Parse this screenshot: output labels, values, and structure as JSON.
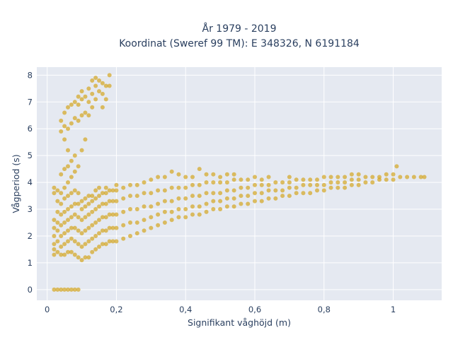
{
  "chart_data": {
    "type": "scatter",
    "title_lines": [
      "År 1979 - 2019",
      "Koordinat (Sweref 99 TM): E 348326, N 6191184"
    ],
    "xlabel": "Signifikant våghöjd (m)",
    "ylabel": "Vågperiod (s)",
    "xlim": [
      -0.03,
      1.14
    ],
    "ylim": [
      -0.4,
      8.3
    ],
    "x_ticks": [
      0,
      0.2,
      0.4,
      0.6,
      0.8,
      1
    ],
    "x_tick_labels": [
      "0",
      "0,2",
      "0,4",
      "0,6",
      "0,8",
      "1"
    ],
    "y_ticks": [
      0,
      1,
      2,
      3,
      4,
      5,
      6,
      7,
      8
    ],
    "y_tick_labels": [
      "0",
      "1",
      "2",
      "3",
      "4",
      "5",
      "6",
      "7",
      "8"
    ],
    "grid": true,
    "legend": "none",
    "marker_color": "#d4a521",
    "marker_opacity": 0.7,
    "plot_bgcolor": "#e5e9f1",
    "points": [
      [
        0.02,
        0
      ],
      [
        0.03,
        0
      ],
      [
        0.04,
        0
      ],
      [
        0.05,
        0
      ],
      [
        0.06,
        0
      ],
      [
        0.07,
        0
      ],
      [
        0.08,
        0
      ],
      [
        0.09,
        0
      ],
      [
        0.02,
        1.3
      ],
      [
        0.02,
        1.5
      ],
      [
        0.02,
        1.7
      ],
      [
        0.02,
        2.0
      ],
      [
        0.02,
        2.3
      ],
      [
        0.02,
        2.6
      ],
      [
        0.02,
        3.6
      ],
      [
        0.02,
        3.8
      ],
      [
        0.03,
        1.4
      ],
      [
        0.03,
        1.8
      ],
      [
        0.03,
        2.2
      ],
      [
        0.03,
        2.5
      ],
      [
        0.03,
        2.9
      ],
      [
        0.03,
        3.3
      ],
      [
        0.03,
        3.7
      ],
      [
        0.04,
        1.3
      ],
      [
        0.04,
        1.6
      ],
      [
        0.04,
        2.0
      ],
      [
        0.04,
        2.4
      ],
      [
        0.04,
        2.8
      ],
      [
        0.04,
        3.2
      ],
      [
        0.04,
        3.6
      ],
      [
        0.04,
        4.3
      ],
      [
        0.04,
        5.9
      ],
      [
        0.04,
        6.3
      ],
      [
        0.05,
        1.3
      ],
      [
        0.05,
        1.7
      ],
      [
        0.05,
        2.1
      ],
      [
        0.05,
        2.5
      ],
      [
        0.05,
        2.9
      ],
      [
        0.05,
        3.4
      ],
      [
        0.05,
        3.8
      ],
      [
        0.05,
        4.5
      ],
      [
        0.05,
        5.6
      ],
      [
        0.05,
        6.1
      ],
      [
        0.05,
        6.6
      ],
      [
        0.06,
        1.4
      ],
      [
        0.06,
        1.8
      ],
      [
        0.06,
        2.2
      ],
      [
        0.06,
        2.6
      ],
      [
        0.06,
        3.0
      ],
      [
        0.06,
        3.5
      ],
      [
        0.06,
        4.0
      ],
      [
        0.06,
        4.6
      ],
      [
        0.06,
        5.2
      ],
      [
        0.06,
        6.0
      ],
      [
        0.06,
        6.8
      ],
      [
        0.07,
        1.4
      ],
      [
        0.07,
        1.9
      ],
      [
        0.07,
        2.3
      ],
      [
        0.07,
        2.7
      ],
      [
        0.07,
        3.1
      ],
      [
        0.07,
        3.6
      ],
      [
        0.07,
        4.2
      ],
      [
        0.07,
        4.8
      ],
      [
        0.07,
        6.2
      ],
      [
        0.07,
        6.9
      ],
      [
        0.08,
        1.3
      ],
      [
        0.08,
        1.8
      ],
      [
        0.08,
        2.3
      ],
      [
        0.08,
        2.8
      ],
      [
        0.08,
        3.2
      ],
      [
        0.08,
        3.7
      ],
      [
        0.08,
        4.4
      ],
      [
        0.08,
        5.0
      ],
      [
        0.08,
        6.4
      ],
      [
        0.08,
        7.0
      ],
      [
        0.09,
        1.2
      ],
      [
        0.09,
        1.7
      ],
      [
        0.09,
        2.2
      ],
      [
        0.09,
        2.7
      ],
      [
        0.09,
        3.2
      ],
      [
        0.09,
        3.6
      ],
      [
        0.09,
        4.6
      ],
      [
        0.09,
        6.3
      ],
      [
        0.09,
        6.9
      ],
      [
        0.09,
        7.2
      ],
      [
        0.1,
        1.1
      ],
      [
        0.1,
        1.6
      ],
      [
        0.1,
        2.1
      ],
      [
        0.1,
        2.6
      ],
      [
        0.1,
        3.0
      ],
      [
        0.1,
        3.3
      ],
      [
        0.1,
        5.2
      ],
      [
        0.1,
        6.5
      ],
      [
        0.1,
        7.1
      ],
      [
        0.1,
        7.4
      ],
      [
        0.11,
        1.2
      ],
      [
        0.11,
        1.7
      ],
      [
        0.11,
        2.2
      ],
      [
        0.11,
        2.7
      ],
      [
        0.11,
        3.1
      ],
      [
        0.11,
        3.4
      ],
      [
        0.11,
        5.6
      ],
      [
        0.11,
        6.6
      ],
      [
        0.11,
        7.2
      ],
      [
        0.12,
        1.2
      ],
      [
        0.12,
        1.8
      ],
      [
        0.12,
        2.3
      ],
      [
        0.12,
        2.8
      ],
      [
        0.12,
        3.2
      ],
      [
        0.12,
        3.5
      ],
      [
        0.12,
        6.5
      ],
      [
        0.12,
        7.0
      ],
      [
        0.12,
        7.5
      ],
      [
        0.13,
        1.4
      ],
      [
        0.13,
        1.9
      ],
      [
        0.13,
        2.4
      ],
      [
        0.13,
        2.9
      ],
      [
        0.13,
        3.3
      ],
      [
        0.13,
        3.5
      ],
      [
        0.13,
        6.8
      ],
      [
        0.13,
        7.3
      ],
      [
        0.13,
        7.8
      ],
      [
        0.14,
        1.5
      ],
      [
        0.14,
        2.0
      ],
      [
        0.14,
        2.5
      ],
      [
        0.14,
        3.0
      ],
      [
        0.14,
        3.4
      ],
      [
        0.14,
        3.7
      ],
      [
        0.14,
        7.1
      ],
      [
        0.14,
        7.6
      ],
      [
        0.14,
        7.9
      ],
      [
        0.15,
        1.6
      ],
      [
        0.15,
        2.1
      ],
      [
        0.15,
        2.6
      ],
      [
        0.15,
        3.1
      ],
      [
        0.15,
        3.5
      ],
      [
        0.15,
        3.8
      ],
      [
        0.15,
        7.4
      ],
      [
        0.15,
        7.8
      ],
      [
        0.16,
        1.7
      ],
      [
        0.16,
        2.2
      ],
      [
        0.16,
        2.7
      ],
      [
        0.16,
        3.2
      ],
      [
        0.16,
        3.6
      ],
      [
        0.16,
        6.8
      ],
      [
        0.16,
        7.3
      ],
      [
        0.16,
        7.7
      ],
      [
        0.17,
        1.7
      ],
      [
        0.17,
        2.2
      ],
      [
        0.17,
        2.7
      ],
      [
        0.17,
        3.2
      ],
      [
        0.17,
        3.6
      ],
      [
        0.17,
        3.8
      ],
      [
        0.17,
        7.1
      ],
      [
        0.17,
        7.6
      ],
      [
        0.18,
        1.8
      ],
      [
        0.18,
        2.3
      ],
      [
        0.18,
        2.8
      ],
      [
        0.18,
        3.3
      ],
      [
        0.18,
        3.7
      ],
      [
        0.18,
        7.6
      ],
      [
        0.18,
        8.0
      ],
      [
        0.19,
        1.8
      ],
      [
        0.19,
        2.3
      ],
      [
        0.19,
        2.8
      ],
      [
        0.19,
        3.3
      ],
      [
        0.19,
        3.7
      ],
      [
        0.2,
        1.8
      ],
      [
        0.2,
        2.3
      ],
      [
        0.2,
        2.8
      ],
      [
        0.2,
        3.3
      ],
      [
        0.2,
        3.7
      ],
      [
        0.2,
        3.9
      ],
      [
        0.22,
        1.9
      ],
      [
        0.22,
        2.4
      ],
      [
        0.22,
        2.9
      ],
      [
        0.22,
        3.4
      ],
      [
        0.22,
        3.8
      ],
      [
        0.24,
        2.0
      ],
      [
        0.24,
        2.5
      ],
      [
        0.24,
        3.0
      ],
      [
        0.24,
        3.5
      ],
      [
        0.24,
        3.9
      ],
      [
        0.26,
        2.1
      ],
      [
        0.26,
        2.5
      ],
      [
        0.26,
        3.0
      ],
      [
        0.26,
        3.5
      ],
      [
        0.26,
        3.9
      ],
      [
        0.28,
        2.2
      ],
      [
        0.28,
        2.6
      ],
      [
        0.28,
        3.1
      ],
      [
        0.28,
        3.6
      ],
      [
        0.28,
        4.0
      ],
      [
        0.3,
        2.3
      ],
      [
        0.3,
        2.7
      ],
      [
        0.3,
        3.1
      ],
      [
        0.3,
        3.6
      ],
      [
        0.3,
        4.1
      ],
      [
        0.32,
        2.4
      ],
      [
        0.32,
        2.8
      ],
      [
        0.32,
        3.2
      ],
      [
        0.32,
        3.7
      ],
      [
        0.32,
        4.2
      ],
      [
        0.34,
        2.5
      ],
      [
        0.34,
        2.9
      ],
      [
        0.34,
        3.3
      ],
      [
        0.34,
        3.7
      ],
      [
        0.34,
        4.2
      ],
      [
        0.36,
        2.6
      ],
      [
        0.36,
        2.9
      ],
      [
        0.36,
        3.3
      ],
      [
        0.36,
        3.8
      ],
      [
        0.36,
        4.4
      ],
      [
        0.38,
        2.7
      ],
      [
        0.38,
        3.0
      ],
      [
        0.38,
        3.4
      ],
      [
        0.38,
        3.8
      ],
      [
        0.38,
        4.3
      ],
      [
        0.4,
        2.7
      ],
      [
        0.4,
        3.0
      ],
      [
        0.4,
        3.4
      ],
      [
        0.4,
        3.8
      ],
      [
        0.4,
        4.2
      ],
      [
        0.42,
        2.8
      ],
      [
        0.42,
        3.1
      ],
      [
        0.42,
        3.5
      ],
      [
        0.42,
        3.9
      ],
      [
        0.42,
        4.2
      ],
      [
        0.44,
        2.8
      ],
      [
        0.44,
        3.1
      ],
      [
        0.44,
        3.5
      ],
      [
        0.44,
        3.9
      ],
      [
        0.44,
        4.5
      ],
      [
        0.46,
        2.9
      ],
      [
        0.46,
        3.2
      ],
      [
        0.46,
        3.6
      ],
      [
        0.46,
        4.0
      ],
      [
        0.46,
        4.3
      ],
      [
        0.48,
        3.0
      ],
      [
        0.48,
        3.3
      ],
      [
        0.48,
        3.6
      ],
      [
        0.48,
        4.0
      ],
      [
        0.48,
        4.3
      ],
      [
        0.5,
        3.0
      ],
      [
        0.5,
        3.3
      ],
      [
        0.5,
        3.6
      ],
      [
        0.5,
        4.0
      ],
      [
        0.5,
        4.2
      ],
      [
        0.52,
        3.1
      ],
      [
        0.52,
        3.4
      ],
      [
        0.52,
        3.7
      ],
      [
        0.52,
        4.0
      ],
      [
        0.52,
        4.3
      ],
      [
        0.54,
        3.1
      ],
      [
        0.54,
        3.4
      ],
      [
        0.54,
        3.7
      ],
      [
        0.54,
        4.1
      ],
      [
        0.54,
        4.3
      ],
      [
        0.56,
        3.2
      ],
      [
        0.56,
        3.5
      ],
      [
        0.56,
        3.8
      ],
      [
        0.56,
        4.1
      ],
      [
        0.58,
        3.2
      ],
      [
        0.58,
        3.5
      ],
      [
        0.58,
        3.8
      ],
      [
        0.58,
        4.1
      ],
      [
        0.6,
        3.3
      ],
      [
        0.6,
        3.6
      ],
      [
        0.6,
        3.9
      ],
      [
        0.6,
        4.2
      ],
      [
        0.62,
        3.3
      ],
      [
        0.62,
        3.6
      ],
      [
        0.62,
        3.9
      ],
      [
        0.62,
        4.1
      ],
      [
        0.64,
        3.4
      ],
      [
        0.64,
        3.7
      ],
      [
        0.64,
        3.9
      ],
      [
        0.64,
        4.2
      ],
      [
        0.66,
        3.4
      ],
      [
        0.66,
        3.7
      ],
      [
        0.66,
        4.0
      ],
      [
        0.68,
        3.5
      ],
      [
        0.68,
        3.7
      ],
      [
        0.68,
        4.0
      ],
      [
        0.7,
        3.5
      ],
      [
        0.7,
        3.8
      ],
      [
        0.7,
        4.0
      ],
      [
        0.7,
        4.2
      ],
      [
        0.72,
        3.6
      ],
      [
        0.72,
        3.8
      ],
      [
        0.72,
        4.1
      ],
      [
        0.74,
        3.6
      ],
      [
        0.74,
        3.9
      ],
      [
        0.74,
        4.1
      ],
      [
        0.76,
        3.6
      ],
      [
        0.76,
        3.9
      ],
      [
        0.76,
        4.1
      ],
      [
        0.78,
        3.7
      ],
      [
        0.78,
        3.9
      ],
      [
        0.78,
        4.1
      ],
      [
        0.8,
        3.7
      ],
      [
        0.8,
        3.9
      ],
      [
        0.8,
        4.2
      ],
      [
        0.82,
        3.8
      ],
      [
        0.82,
        4.0
      ],
      [
        0.82,
        4.2
      ],
      [
        0.84,
        3.8
      ],
      [
        0.84,
        4.0
      ],
      [
        0.84,
        4.2
      ],
      [
        0.86,
        3.8
      ],
      [
        0.86,
        4.0
      ],
      [
        0.86,
        4.2
      ],
      [
        0.88,
        3.9
      ],
      [
        0.88,
        4.1
      ],
      [
        0.88,
        4.3
      ],
      [
        0.9,
        3.9
      ],
      [
        0.9,
        4.1
      ],
      [
        0.9,
        4.3
      ],
      [
        0.92,
        4.0
      ],
      [
        0.92,
        4.2
      ],
      [
        0.94,
        4.0
      ],
      [
        0.94,
        4.2
      ],
      [
        0.96,
        4.1
      ],
      [
        0.96,
        4.2
      ],
      [
        0.98,
        4.1
      ],
      [
        0.98,
        4.3
      ],
      [
        1.0,
        4.1
      ],
      [
        1.0,
        4.3
      ],
      [
        1.01,
        4.6
      ],
      [
        1.02,
        4.2
      ],
      [
        1.04,
        4.2
      ],
      [
        1.06,
        4.2
      ],
      [
        1.08,
        4.2
      ],
      [
        1.09,
        4.2
      ]
    ]
  }
}
